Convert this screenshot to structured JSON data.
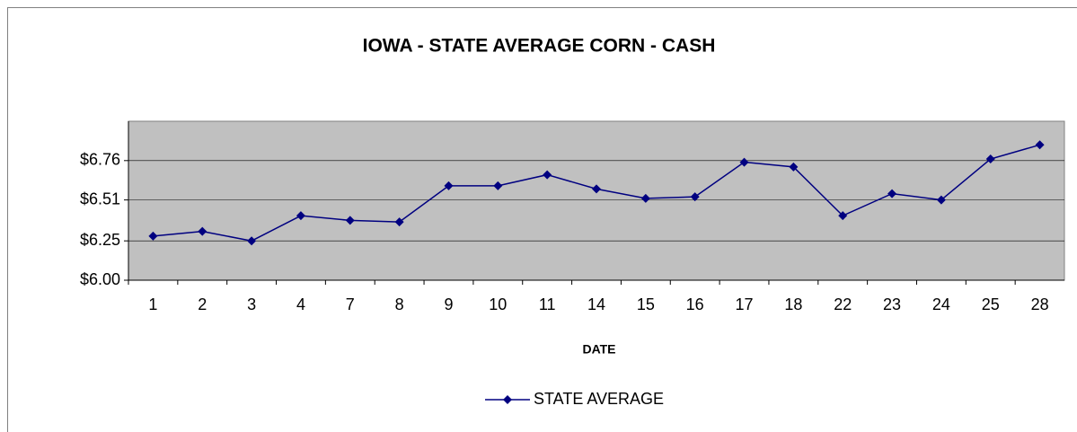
{
  "chart_data": {
    "type": "line",
    "title": "IOWA - STATE AVERAGE CORN - CASH",
    "x_label": "DATE",
    "categories": [
      "1",
      "2",
      "3",
      "4",
      "7",
      "8",
      "9",
      "10",
      "11",
      "14",
      "15",
      "16",
      "17",
      "18",
      "22",
      "23",
      "24",
      "25",
      "28"
    ],
    "series": [
      {
        "name": "STATE AVERAGE",
        "color": "#000080",
        "values": [
          6.28,
          6.31,
          6.25,
          6.41,
          6.38,
          6.37,
          6.6,
          6.6,
          6.67,
          6.58,
          6.52,
          6.53,
          6.75,
          6.72,
          6.41,
          6.55,
          6.51,
          6.77,
          6.86
        ]
      }
    ],
    "ylim": [
      6.0,
      7.01
    ],
    "yticks": [
      {
        "value": 6.0,
        "label": "$6.00"
      },
      {
        "value": 6.25,
        "label": "$6.25"
      },
      {
        "value": 6.51,
        "label": "$6.51"
      },
      {
        "value": 6.76,
        "label": "$6.76"
      }
    ],
    "grid": true
  }
}
